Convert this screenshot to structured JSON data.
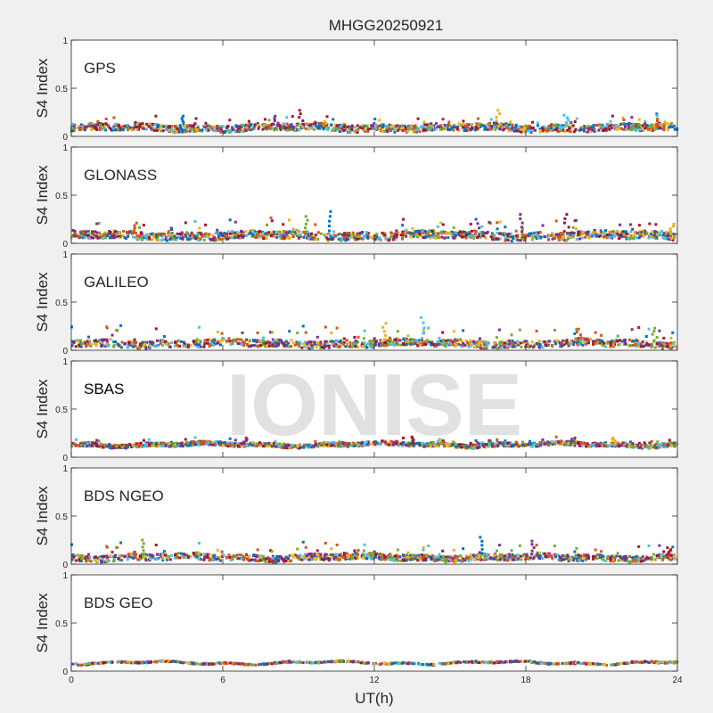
{
  "chart_data": {
    "type": "scatter",
    "title": "MHGG20250921",
    "xlabel": "UT(h)",
    "ylabel": "S4 Index",
    "xlim": [
      0,
      24
    ],
    "ylim": [
      0,
      1
    ],
    "xticks": [
      "0",
      "6",
      "12",
      "18",
      "24"
    ],
    "yticks": [
      "0",
      "0.5",
      "1"
    ],
    "grid": false,
    "watermark": "IONISE",
    "palette": [
      "#0072bd",
      "#d95319",
      "#edb120",
      "#7e2f8e",
      "#77ac30",
      "#4dbeee",
      "#a2142f"
    ],
    "panels": [
      {
        "name": "GPS",
        "baseline": 0.09,
        "spread": 0.045,
        "density": 0.85,
        "max_spike": 0.27,
        "spikes": [
          [
            4.4,
            0.21
          ],
          [
            8.1,
            0.21
          ],
          [
            9.1,
            0.27
          ],
          [
            16.9,
            0.27
          ],
          [
            19.6,
            0.22
          ],
          [
            23.2,
            0.18
          ]
        ]
      },
      {
        "name": "GLONASS",
        "baseline": 0.08,
        "spread": 0.05,
        "density": 0.85,
        "max_spike": 0.33,
        "spikes": [
          [
            2.5,
            0.21
          ],
          [
            9.3,
            0.28
          ],
          [
            10.2,
            0.33
          ],
          [
            17.8,
            0.3
          ],
          [
            19.6,
            0.3
          ],
          [
            23.8,
            0.2
          ]
        ]
      },
      {
        "name": "GALILEO",
        "baseline": 0.07,
        "spread": 0.045,
        "density": 0.75,
        "max_spike": 0.34,
        "spikes": [
          [
            12.4,
            0.28
          ],
          [
            13.9,
            0.34
          ],
          [
            20.1,
            0.22
          ],
          [
            23.1,
            0.23
          ]
        ]
      },
      {
        "name": "SBAS",
        "baseline": 0.13,
        "spread": 0.025,
        "density": 1.0,
        "max_spike": 0.22,
        "spikes": [
          [
            6.9,
            0.2
          ],
          [
            13.5,
            0.21
          ],
          [
            21.5,
            0.2
          ]
        ]
      },
      {
        "name": "BDS NGEO",
        "baseline": 0.07,
        "spread": 0.04,
        "density": 0.8,
        "max_spike": 0.28,
        "spikes": [
          [
            2.8,
            0.25
          ],
          [
            16.2,
            0.28
          ],
          [
            18.3,
            0.24
          ],
          [
            23.7,
            0.17
          ]
        ]
      },
      {
        "name": "BDS GEO",
        "baseline": 0.085,
        "spread": 0.008,
        "density": 0.5,
        "max_spike": 0.1,
        "spikes": []
      }
    ]
  }
}
